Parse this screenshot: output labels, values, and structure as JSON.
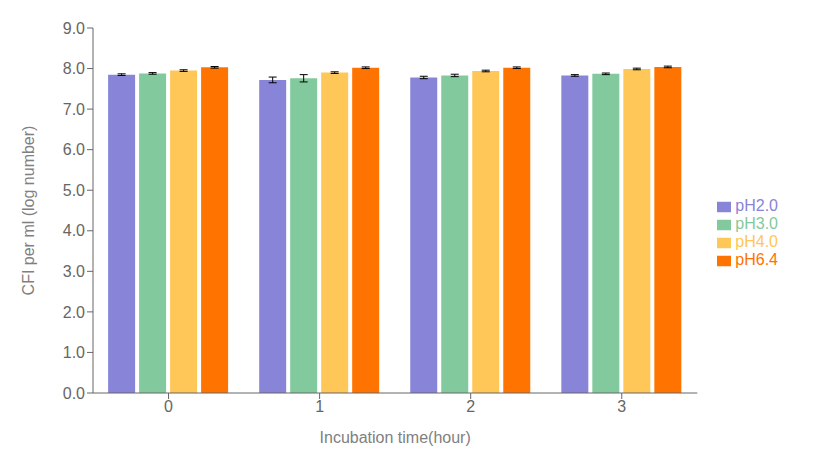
{
  "chart_data": {
    "type": "bar",
    "xlabel": "Incubation time(hour)",
    "ylabel": "CFI per ml (log number)",
    "categories": [
      "0",
      "1",
      "2",
      "3"
    ],
    "series": [
      {
        "name": "pH2.0",
        "color": "#8884d8",
        "values": [
          7.85,
          7.72,
          7.78,
          7.83
        ],
        "errors": [
          0.02,
          0.07,
          0.03,
          0.02
        ]
      },
      {
        "name": "pH3.0",
        "color": "#82ca9d",
        "values": [
          7.88,
          7.76,
          7.83,
          7.87
        ],
        "errors": [
          0.02,
          0.09,
          0.03,
          0.02
        ]
      },
      {
        "name": "pH4.0",
        "color": "#ffc658",
        "values": [
          7.95,
          7.9,
          7.94,
          7.99
        ],
        "errors": [
          0.02,
          0.02,
          0.02,
          0.02
        ]
      },
      {
        "name": "pH6.4",
        "color": "#ff7300",
        "values": [
          8.03,
          8.02,
          8.02,
          8.04
        ],
        "errors": [
          0.02,
          0.02,
          0.02,
          0.02
        ]
      }
    ],
    "ylim": [
      0.0,
      9.0
    ],
    "yticks": [
      {
        "value": 0,
        "label": "0.0"
      },
      {
        "value": 1,
        "label": "1.0"
      },
      {
        "value": 2,
        "label": "2.0"
      },
      {
        "value": 3,
        "label": "3.0"
      },
      {
        "value": 4,
        "label": "4.0"
      },
      {
        "value": 5,
        "label": "5.0"
      },
      {
        "value": 6,
        "label": "6.0"
      },
      {
        "value": 7,
        "label": "7.0"
      },
      {
        "value": 8,
        "label": "8.0"
      },
      {
        "value": 9,
        "label": "9.0"
      }
    ],
    "grid": false,
    "legend": "right"
  }
}
